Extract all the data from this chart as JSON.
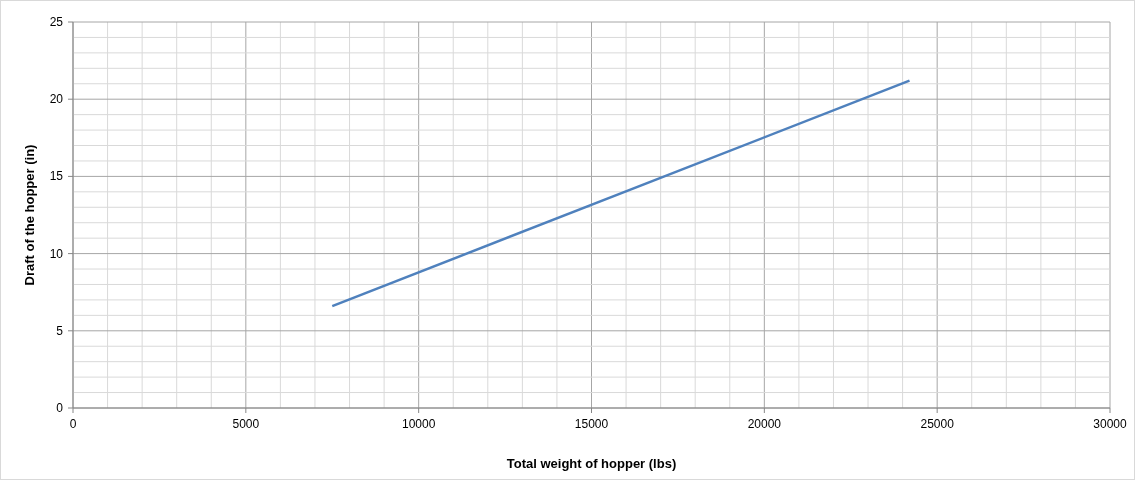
{
  "chart_data": {
    "type": "line",
    "xlabel": "Total weight of hopper (lbs)",
    "ylabel": "Draft of the hopper (in)",
    "x": [
      7500,
      24200
    ],
    "series": [
      {
        "color": "#4f81bd",
        "values": [
          6.6,
          21.2
        ]
      }
    ],
    "xlim": [
      0,
      30000
    ],
    "ylim": [
      0,
      25
    ],
    "xticks": [
      0,
      {
        "value": 1000,
        "label": null
      },
      {
        "value": 2000,
        "label": null
      },
      {
        "value": 3000,
        "label": null
      },
      {
        "value": 4000,
        "label": null
      },
      5000,
      {
        "value": 6000,
        "label": null
      },
      {
        "value": 7000,
        "label": null
      },
      {
        "value": 8000,
        "label": null
      },
      {
        "value": 9000,
        "label": null
      },
      10000,
      {
        "value": 11000,
        "label": null
      },
      {
        "value": 12000,
        "label": null
      },
      {
        "value": 13000,
        "label": null
      },
      {
        "value": 14000,
        "label": null
      },
      15000,
      {
        "value": 16000,
        "label": null
      },
      {
        "value": 17000,
        "label": null
      },
      {
        "value": 18000,
        "label": null
      },
      {
        "value": 19000,
        "label": null
      },
      20000,
      {
        "value": 21000,
        "label": null
      },
      {
        "value": 22000,
        "label": null
      },
      {
        "value": 23000,
        "label": null
      },
      {
        "value": 24000,
        "label": null
      },
      25000,
      {
        "value": 26000,
        "label": null
      },
      {
        "value": 27000,
        "label": null
      },
      {
        "value": 28000,
        "label": null
      },
      {
        "value": 29000,
        "label": null
      },
      30000
    ],
    "yticks": [
      0,
      {
        "value": 1,
        "label": null
      },
      {
        "value": 2,
        "label": null
      },
      {
        "value": 3,
        "label": null
      },
      {
        "value": 4,
        "label": null
      },
      5,
      {
        "value": 6,
        "label": null
      },
      {
        "value": 7,
        "label": null
      },
      {
        "value": 8,
        "label": null
      },
      {
        "value": 9,
        "label": null
      },
      10,
      {
        "value": 11,
        "label": null
      },
      {
        "value": 12,
        "label": null
      },
      {
        "value": 13,
        "label": null
      },
      {
        "value": 14,
        "label": null
      },
      15,
      {
        "value": 16,
        "label": null
      },
      {
        "value": 17,
        "label": null
      },
      {
        "value": 18,
        "label": null
      },
      {
        "value": 19,
        "label": null
      },
      20,
      {
        "value": 21,
        "label": null
      },
      {
        "value": 22,
        "label": null
      },
      {
        "value": 23,
        "label": null
      },
      {
        "value": 24,
        "label": null
      },
      25
    ],
    "grid": true,
    "marker": "none",
    "line_style": "solid"
  }
}
